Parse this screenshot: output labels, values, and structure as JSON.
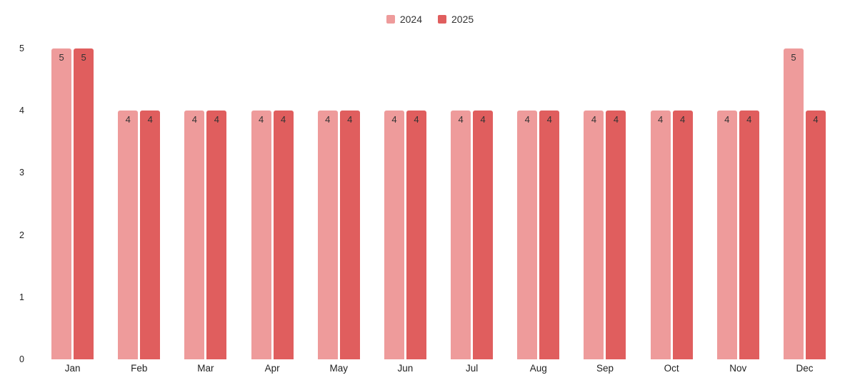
{
  "chart_data": {
    "type": "bar",
    "title": "",
    "xlabel": "",
    "ylabel": "",
    "categories": [
      "Jan",
      "Feb",
      "Mar",
      "Apr",
      "May",
      "Jun",
      "Jul",
      "Aug",
      "Sep",
      "Oct",
      "Nov",
      "Dec"
    ],
    "series": [
      {
        "name": "2024",
        "color": "#EE9B9B",
        "values": [
          5,
          4,
          4,
          4,
          4,
          4,
          4,
          4,
          4,
          4,
          4,
          5
        ]
      },
      {
        "name": "2025",
        "color": "#E05E5E",
        "values": [
          5,
          4,
          4,
          4,
          4,
          4,
          4,
          4,
          4,
          4,
          4,
          4
        ]
      }
    ],
    "ylim": [
      0,
      5
    ],
    "yticks": [
      0,
      1,
      2,
      3,
      4,
      5
    ],
    "grid": false,
    "legend_position": "top",
    "value_labels": "inside-top",
    "text_color": "#333333",
    "background": "#ffffff"
  }
}
